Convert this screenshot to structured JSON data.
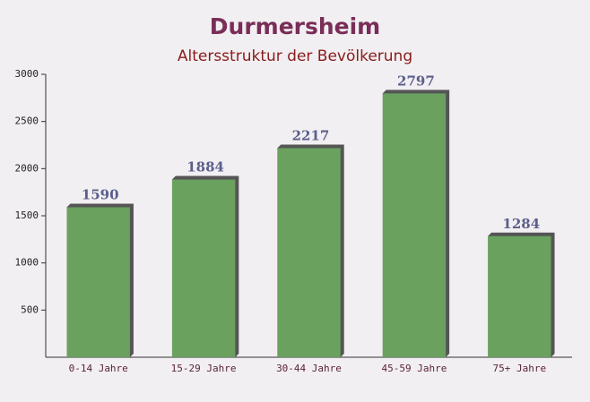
{
  "chart_data": {
    "type": "bar",
    "title": "Durmersheim",
    "subtitle": "Altersstruktur der Bevölkerung",
    "categories": [
      "0-14 Jahre",
      "15-29 Jahre",
      "30-44 Jahre",
      "45-59 Jahre",
      "75+ Jahre"
    ],
    "values": [
      1590,
      1884,
      2217,
      2797,
      1284
    ],
    "color": "#6aa15f",
    "ylim": [
      0,
      3000
    ],
    "yticks": [
      500,
      1000,
      1500,
      2000,
      2500,
      3000
    ],
    "grid": false
  }
}
